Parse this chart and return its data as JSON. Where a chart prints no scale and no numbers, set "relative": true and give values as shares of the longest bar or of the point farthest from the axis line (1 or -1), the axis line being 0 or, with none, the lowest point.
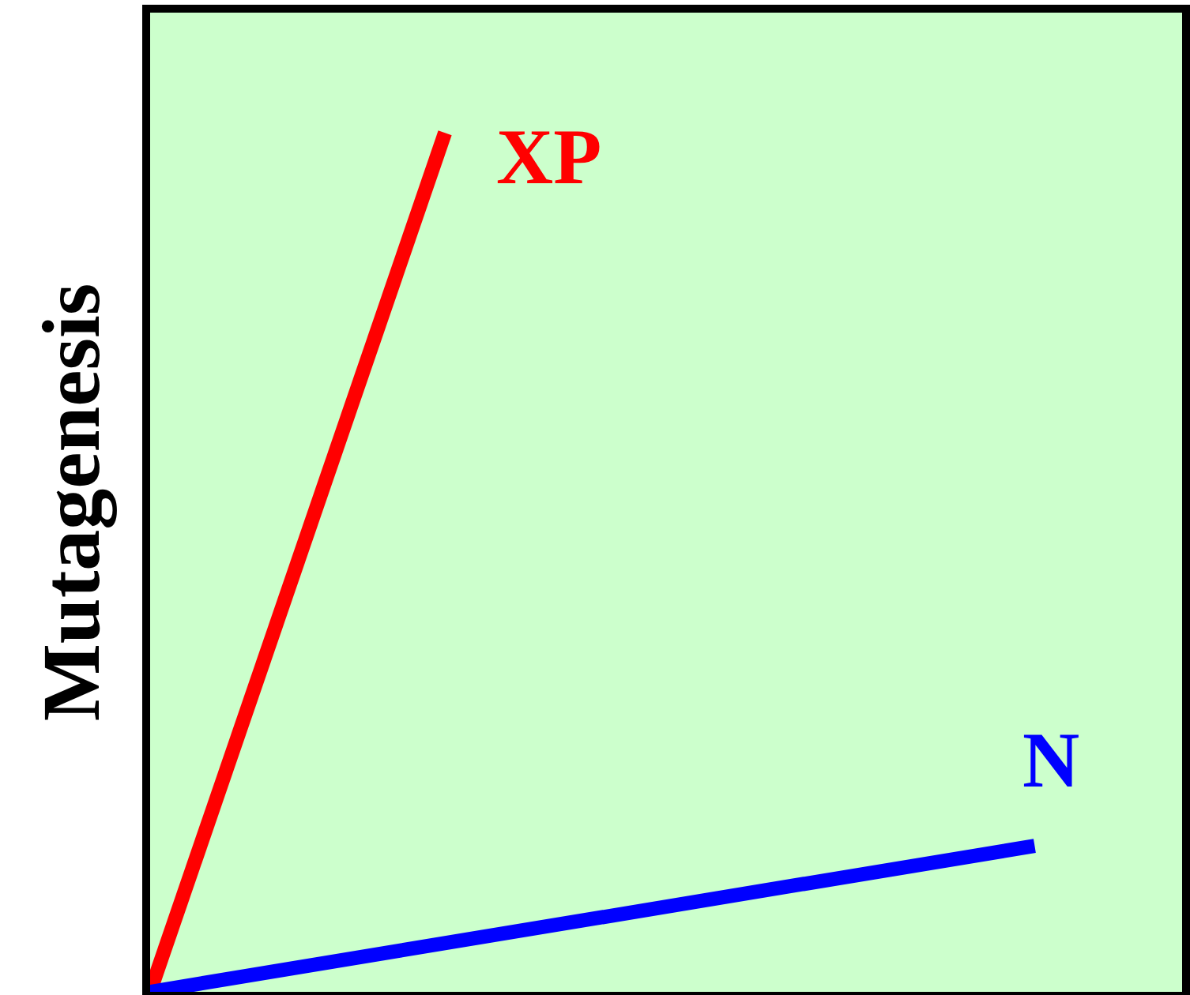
{
  "chart_data": {
    "type": "line",
    "relative": true,
    "ylabel": "Mutagenesis",
    "categories": [
      null,
      null,
      null,
      null,
      null,
      null,
      null,
      null,
      null,
      null
    ],
    "series": [
      {
        "name": "XP",
        "color": "#ff0000",
        "values": [
          0,
          null,
          null,
          1,
          null,
          null,
          null,
          null,
          null,
          null
        ]
      },
      {
        "name": "N",
        "color": "#0000ff",
        "values": [
          0,
          null,
          null,
          null,
          null,
          null,
          null,
          null,
          null,
          0.17
        ]
      }
    ],
    "legend": false,
    "marker": "none",
    "line_style": "solid"
  }
}
